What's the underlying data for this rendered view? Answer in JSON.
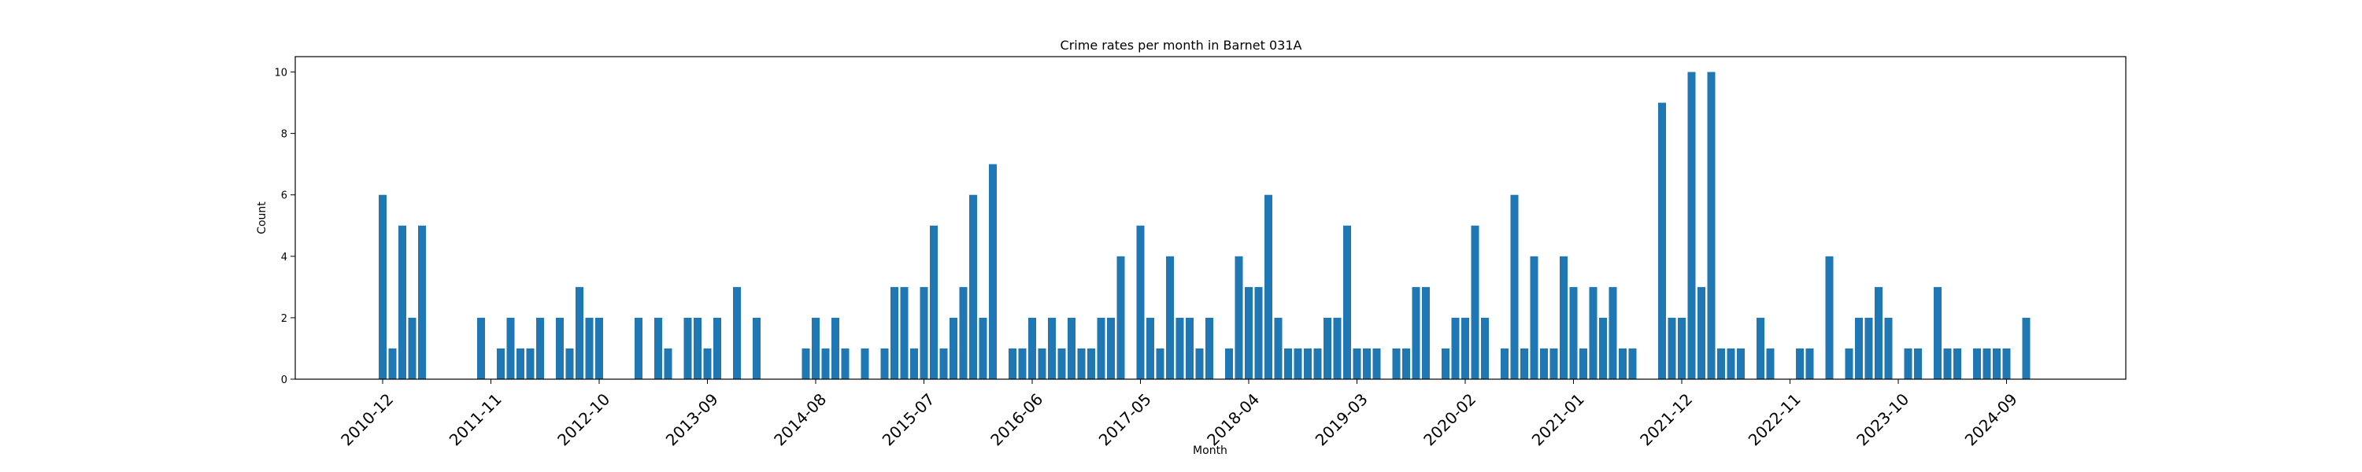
{
  "chart_data": {
    "type": "bar",
    "title": "Crime rates per month in Barnet 031A",
    "xlabel": "Month",
    "ylabel": "Count",
    "ylim": [
      0,
      10.5
    ],
    "yticks": [
      0,
      2,
      4,
      6,
      8,
      10
    ],
    "grid": false,
    "bar_color": "#1f77b4",
    "x_tick_labels": [
      "2010-12",
      "2011-11",
      "2012-10",
      "2013-09",
      "2014-08",
      "2015-07",
      "2016-06",
      "2017-05",
      "2018-04",
      "2019-03",
      "2020-02",
      "2021-01",
      "2021-12",
      "2022-11",
      "2023-10",
      "2024-09"
    ],
    "months": [
      "2010-12",
      "2011-01",
      "2011-02",
      "2011-03",
      "2011-04",
      "2011-05",
      "2011-06",
      "2011-07",
      "2011-08",
      "2011-09",
      "2011-10",
      "2011-11",
      "2011-12",
      "2012-01",
      "2012-02",
      "2012-03",
      "2012-04",
      "2012-05",
      "2012-06",
      "2012-07",
      "2012-08",
      "2012-09",
      "2012-10",
      "2012-11",
      "2012-12",
      "2013-01",
      "2013-02",
      "2013-03",
      "2013-04",
      "2013-05",
      "2013-06",
      "2013-07",
      "2013-08",
      "2013-09",
      "2013-10",
      "2013-11",
      "2013-12",
      "2014-01",
      "2014-02",
      "2014-03",
      "2014-04",
      "2014-05",
      "2014-06",
      "2014-07",
      "2014-08",
      "2014-09",
      "2014-10",
      "2014-11",
      "2014-12",
      "2015-01",
      "2015-02",
      "2015-03",
      "2015-04",
      "2015-05",
      "2015-06",
      "2015-07",
      "2015-08",
      "2015-09",
      "2015-10",
      "2015-11",
      "2015-12",
      "2016-01",
      "2016-02",
      "2016-03",
      "2016-04",
      "2016-05",
      "2016-06",
      "2016-07",
      "2016-08",
      "2016-09",
      "2016-10",
      "2016-11",
      "2016-12",
      "2017-01",
      "2017-02",
      "2017-03",
      "2017-04",
      "2017-05",
      "2017-06",
      "2017-07",
      "2017-08",
      "2017-09",
      "2017-10",
      "2017-11",
      "2017-12",
      "2018-01",
      "2018-02",
      "2018-03",
      "2018-04",
      "2018-05",
      "2018-06",
      "2018-07",
      "2018-08",
      "2018-09",
      "2018-10",
      "2018-11",
      "2018-12",
      "2019-01",
      "2019-02",
      "2019-03",
      "2019-04",
      "2019-05",
      "2019-06",
      "2019-07",
      "2019-08",
      "2019-09",
      "2019-10",
      "2019-11",
      "2019-12",
      "2020-01",
      "2020-02",
      "2020-03",
      "2020-04",
      "2020-05",
      "2020-06",
      "2020-07",
      "2020-08",
      "2020-09",
      "2020-10",
      "2020-11",
      "2020-12",
      "2021-01",
      "2021-02",
      "2021-03",
      "2021-04",
      "2021-05",
      "2021-06",
      "2021-07",
      "2021-08",
      "2021-09",
      "2021-10",
      "2021-11",
      "2021-12",
      "2022-01",
      "2022-02",
      "2022-03",
      "2022-04",
      "2022-05",
      "2022-06",
      "2022-07",
      "2022-08",
      "2022-09",
      "2022-10",
      "2022-11",
      "2022-12",
      "2023-01",
      "2023-02",
      "2023-03",
      "2023-04",
      "2023-05",
      "2023-06",
      "2023-07",
      "2023-08",
      "2023-09",
      "2023-10",
      "2023-11",
      "2023-12",
      "2024-01",
      "2024-02",
      "2024-03",
      "2024-04",
      "2024-05",
      "2024-06",
      "2024-07",
      "2024-08",
      "2024-09",
      "2024-10",
      "2024-11"
    ],
    "values": [
      6,
      1,
      5,
      2,
      5,
      0,
      0,
      0,
      0,
      0,
      2,
      0,
      1,
      2,
      1,
      1,
      2,
      0,
      2,
      1,
      3,
      2,
      2,
      0,
      0,
      0,
      2,
      0,
      2,
      1,
      0,
      2,
      2,
      1,
      2,
      0,
      3,
      0,
      2,
      0,
      0,
      0,
      0,
      1,
      2,
      1,
      2,
      1,
      0,
      1,
      0,
      1,
      3,
      3,
      1,
      3,
      5,
      1,
      2,
      3,
      6,
      2,
      7,
      0,
      1,
      1,
      2,
      1,
      2,
      1,
      2,
      1,
      1,
      2,
      2,
      4,
      0,
      5,
      2,
      1,
      4,
      2,
      2,
      1,
      2,
      0,
      1,
      4,
      3,
      3,
      6,
      2,
      1,
      1,
      1,
      1,
      2,
      2,
      5,
      1,
      1,
      1,
      0,
      1,
      1,
      3,
      3,
      0,
      1,
      2,
      2,
      5,
      2,
      0,
      1,
      6,
      1,
      4,
      1,
      1,
      4,
      3,
      1,
      3,
      2,
      3,
      1,
      1,
      0,
      0,
      9,
      2,
      2,
      10,
      3,
      10,
      1,
      1,
      1,
      0,
      2,
      1,
      0,
      0,
      1,
      1,
      0,
      4,
      0,
      1,
      2,
      2,
      3,
      2,
      0,
      1,
      1,
      0,
      3,
      1,
      1,
      0,
      1,
      1,
      1,
      1,
      0,
      2
    ]
  }
}
